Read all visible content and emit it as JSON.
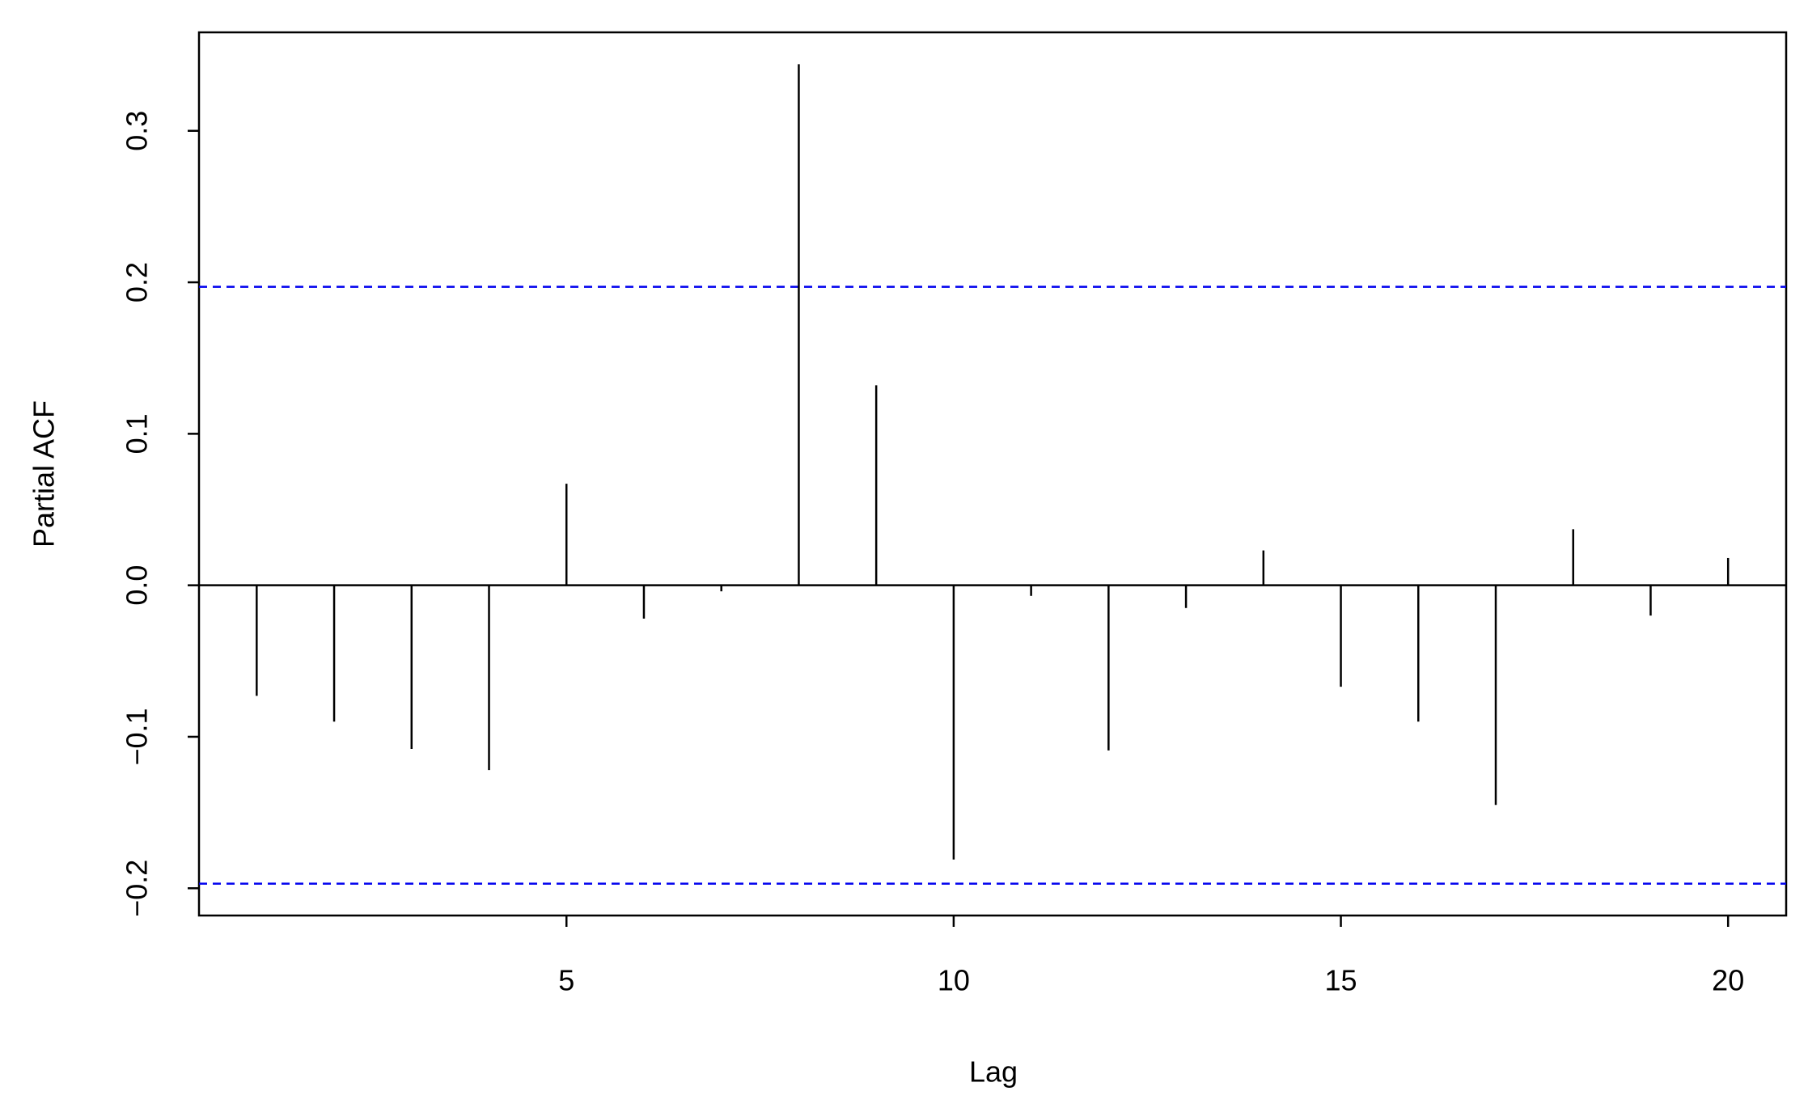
{
  "chart_data": {
    "type": "stem",
    "xlabel": "Lag",
    "ylabel": "Partial ACF",
    "x": [
      1,
      2,
      3,
      4,
      5,
      6,
      7,
      8,
      9,
      10,
      11,
      12,
      13,
      14,
      15,
      16,
      17,
      18,
      19,
      20
    ],
    "values": [
      -0.073,
      -0.09,
      -0.108,
      -0.122,
      0.067,
      -0.022,
      -0.004,
      0.344,
      0.132,
      -0.181,
      -0.007,
      -0.109,
      -0.015,
      0.023,
      -0.067,
      -0.09,
      -0.145,
      0.037,
      -0.02,
      0.018
    ],
    "color": "#000000",
    "confidence_bounds": [
      0.197,
      -0.197
    ],
    "confidence_color": "#0000ee",
    "xlim": [
      0.255,
      20.75
    ],
    "xticks": [
      5,
      10,
      15,
      20
    ],
    "ylim": [
      -0.218,
      0.365
    ],
    "yticks": [
      {
        "value": -0.2,
        "label": "−0.2"
      },
      {
        "value": -0.1,
        "label": "−0.1"
      },
      {
        "value": 0,
        "label": "0.0"
      },
      0.1,
      0.2,
      0.3
    ]
  }
}
